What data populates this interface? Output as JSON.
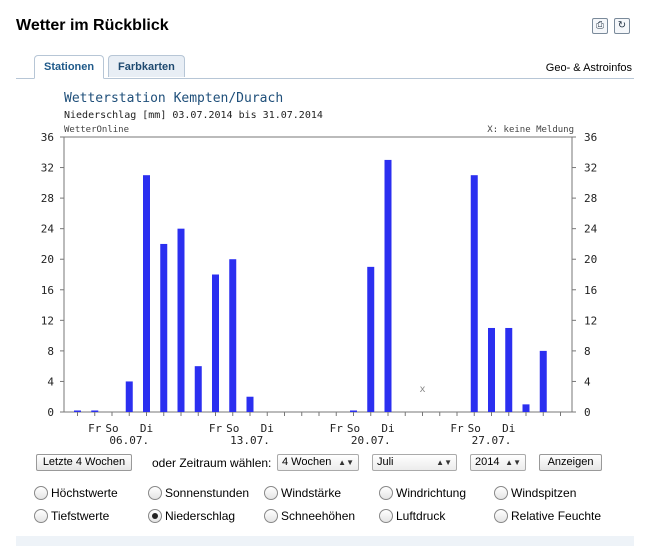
{
  "header": {
    "title": "Wetter im Rückblick",
    "icons": [
      "print-icon",
      "refresh-icon"
    ]
  },
  "tabs": [
    {
      "label": "Stationen",
      "active": true
    },
    {
      "label": "Farbkarten",
      "active": false
    }
  ],
  "geo_link": "Geo- & Astroinfos",
  "chart_data": {
    "type": "bar",
    "title": "Wetterstation Kempten/Durach",
    "subtitle": "Niederschlag [mm] 03.07.2014 bis 31.07.2014",
    "source": "WetterOnline",
    "note": "X: keine Meldung",
    "ylim": [
      0,
      36
    ],
    "yticks": [
      0,
      4,
      8,
      12,
      16,
      20,
      24,
      28,
      32,
      36
    ],
    "grid": false,
    "bar_color": "#2b2ff0",
    "x_days": [
      "03.07.",
      "04.07.",
      "05.07.",
      "06.07.",
      "07.07.",
      "08.07.",
      "09.07.",
      "10.07.",
      "11.07.",
      "12.07.",
      "13.07.",
      "14.07.",
      "15.07.",
      "16.07.",
      "17.07.",
      "18.07.",
      "19.07.",
      "20.07.",
      "21.07.",
      "22.07.",
      "23.07.",
      "24.07.",
      "25.07.",
      "26.07.",
      "27.07.",
      "28.07.",
      "29.07.",
      "30.07.",
      "31.07."
    ],
    "values": [
      0.2,
      0.2,
      0,
      4,
      31,
      22,
      24,
      6,
      18,
      20,
      2,
      0,
      0,
      0,
      0,
      0,
      0.2,
      19,
      33,
      0,
      null,
      0,
      0,
      31,
      11,
      11,
      1,
      8,
      0
    ],
    "missing_marker": "x",
    "weekday_labels": [
      {
        "day": "04.07.",
        "text": "Fr"
      },
      {
        "day": "05.07.",
        "text": "So"
      },
      {
        "day": "07.07.",
        "text": "Di"
      },
      {
        "day": "11.07.",
        "text": "Fr"
      },
      {
        "day": "12.07.",
        "text": "So"
      },
      {
        "day": "14.07.",
        "text": "Di"
      },
      {
        "day": "18.07.",
        "text": "Fr"
      },
      {
        "day": "19.07.",
        "text": "So"
      },
      {
        "day": "21.07.",
        "text": "Di"
      },
      {
        "day": "25.07.",
        "text": "Fr"
      },
      {
        "day": "26.07.",
        "text": "So"
      },
      {
        "day": "28.07.",
        "text": "Di"
      }
    ],
    "date_labels": [
      {
        "day": "06.07.",
        "text": "06.07."
      },
      {
        "day": "13.07.",
        "text": "13.07."
      },
      {
        "day": "20.07.",
        "text": "20.07."
      },
      {
        "day": "27.07.",
        "text": "27.07."
      }
    ]
  },
  "controls": {
    "last4_button": "Letzte 4 Wochen",
    "zeitraum_label": "oder Zeitraum wählen:",
    "period_select": "4 Wochen",
    "month_select": "Juli",
    "year_select": "2014",
    "show_button": "Anzeigen"
  },
  "radios": [
    {
      "label": "Höchstwerte",
      "checked": false
    },
    {
      "label": "Sonnenstunden",
      "checked": false
    },
    {
      "label": "Windstärke",
      "checked": false
    },
    {
      "label": "Windrichtung",
      "checked": false
    },
    {
      "label": "Windspitzen",
      "checked": false
    },
    {
      "label": "Tiefstwerte",
      "checked": false
    },
    {
      "label": "Niederschlag",
      "checked": true
    },
    {
      "label": "Schneehöhen",
      "checked": false
    },
    {
      "label": "Luftdruck",
      "checked": false
    },
    {
      "label": "Relative Feuchte",
      "checked": false
    }
  ]
}
